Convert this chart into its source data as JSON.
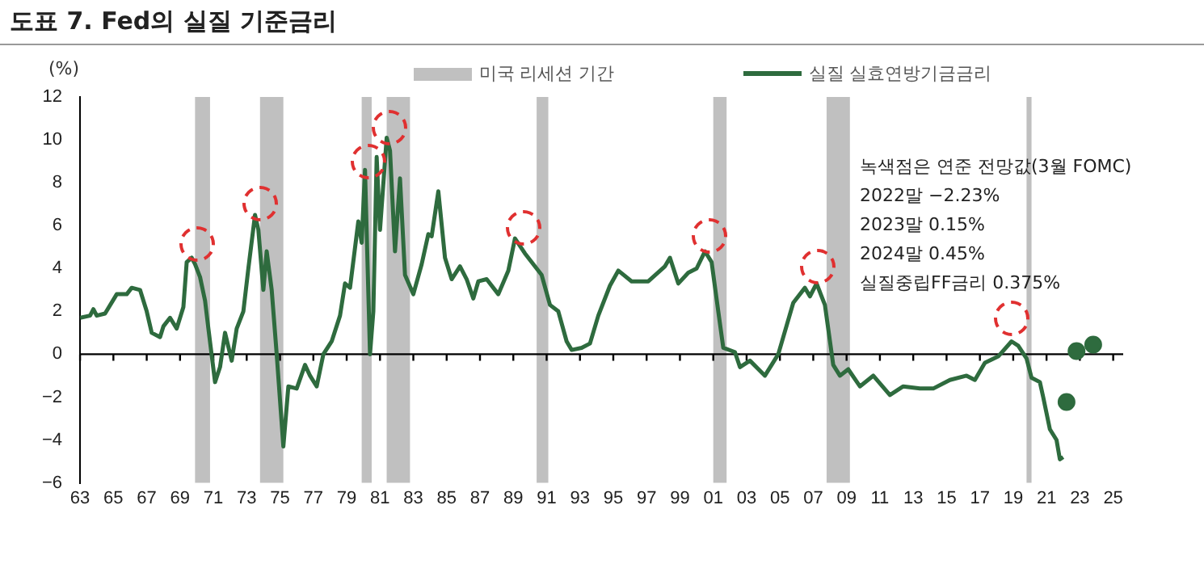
{
  "chart_data": {
    "type": "line",
    "title": "도표 7. Fed의 실질 기준금리",
    "ylabel": "(%)",
    "annotations": [
      "녹색점은 연준 전망값(3월 FOMC)",
      "2022말 −2.23%",
      "2023말 0.15%",
      "2024말 0.45%",
      "실질중립FF금리 0.375%"
    ],
    "series": [
      {
        "name": "실질 실효연방기금금리",
        "color": "#2e6b3e",
        "x": [
          1963.0,
          1963.6,
          1963.8,
          1964.0,
          1964.5,
          1965.2,
          1965.8,
          1966.1,
          1966.6,
          1967.0,
          1967.3,
          1967.8,
          1968.0,
          1968.4,
          1968.8,
          1969.2,
          1969.4,
          1969.7,
          1969.9,
          1970.2,
          1970.5,
          1970.7,
          1971.1,
          1971.4,
          1971.7,
          1972.1,
          1972.4,
          1972.8,
          1973.1,
          1973.5,
          1973.7,
          1974.0,
          1974.2,
          1974.5,
          1974.8,
          1975.2,
          1975.5,
          1976.0,
          1976.5,
          1976.8,
          1977.2,
          1977.6,
          1978.1,
          1978.6,
          1978.9,
          1979.2,
          1979.7,
          1979.9,
          1980.1,
          1980.4,
          1980.6,
          1980.8,
          1981.0,
          1981.4,
          1981.6,
          1981.9,
          1982.2,
          1982.5,
          1983.0,
          1983.5,
          1983.9,
          1984.1,
          1984.5,
          1984.9,
          1985.3,
          1985.8,
          1986.2,
          1986.6,
          1986.9,
          1987.4,
          1988.1,
          1988.7,
          1989.1,
          1989.7,
          1990.2,
          1990.7,
          1991.2,
          1991.7,
          1992.2,
          1992.5,
          1993.1,
          1993.6,
          1994.1,
          1994.8,
          1995.3,
          1996.1,
          1997.1,
          1998.1,
          1998.4,
          1998.9,
          1999.5,
          2000.0,
          2000.5,
          2000.9,
          2001.3,
          2001.6,
          2002.3,
          2002.6,
          2003.2,
          2004.1,
          2004.9,
          2005.8,
          2006.5,
          2006.8,
          2007.2,
          2007.7,
          2008.2,
          2008.6,
          2009.1,
          2009.8,
          2010.6,
          2011.6,
          2012.4,
          2013.4,
          2014.2,
          2015.2,
          2016.2,
          2016.7,
          2017.3,
          2018.1,
          2018.9,
          2019.3,
          2019.8,
          2020.1,
          2020.6,
          2020.8,
          2021.2,
          2021.6,
          2021.8,
          2022.0
        ],
        "values": [
          1.7,
          1.8,
          2.1,
          1.8,
          1.9,
          2.8,
          2.8,
          3.1,
          3.0,
          2.0,
          1.0,
          0.8,
          1.3,
          1.7,
          1.2,
          2.2,
          4.3,
          4.5,
          4.2,
          3.6,
          2.5,
          1.2,
          -1.3,
          -0.6,
          1.0,
          -0.3,
          1.2,
          2.0,
          4.0,
          6.5,
          5.8,
          3.0,
          4.8,
          3.0,
          0.0,
          -4.3,
          -1.5,
          -1.6,
          -0.5,
          -1.0,
          -1.5,
          0.0,
          0.6,
          1.8,
          3.3,
          3.1,
          6.2,
          5.2,
          8.6,
          0.0,
          2.0,
          9.2,
          5.8,
          10.1,
          9.5,
          4.8,
          8.2,
          3.7,
          2.8,
          4.2,
          5.6,
          5.5,
          7.6,
          4.5,
          3.5,
          4.1,
          3.5,
          2.6,
          3.4,
          3.5,
          2.8,
          3.9,
          5.4,
          4.7,
          4.2,
          3.7,
          2.3,
          2.0,
          0.6,
          0.2,
          0.3,
          0.5,
          1.8,
          3.2,
          3.9,
          3.4,
          3.4,
          4.1,
          4.5,
          3.3,
          3.8,
          4.0,
          4.8,
          4.3,
          2.0,
          0.3,
          0.1,
          -0.6,
          -0.3,
          -1.0,
          0.0,
          2.4,
          3.1,
          2.7,
          3.3,
          2.3,
          -0.5,
          -1.0,
          -0.7,
          -1.5,
          -1.0,
          -1.9,
          -1.5,
          -1.6,
          -1.6,
          -1.2,
          -1.0,
          -1.2,
          -0.4,
          -0.1,
          0.6,
          0.4,
          -0.2,
          -1.1,
          -1.3,
          -2.0,
          -3.5,
          -4.0,
          -4.9,
          -4.8
        ]
      },
      {
        "type": "scatter",
        "color": "#2e6b3e",
        "marker": "circle",
        "x": [
          2022.2,
          2022.8,
          2023.8
        ],
        "values": [
          -2.23,
          0.15,
          0.45
        ]
      }
    ],
    "bands": [
      {
        "axis": "x",
        "from": 1969.9,
        "to": 1970.8,
        "label": "미국 리세션 기간",
        "color": "#c0c0c0"
      },
      {
        "axis": "x",
        "from": 1973.8,
        "to": 1975.2,
        "color": "#c0c0c0"
      },
      {
        "axis": "x",
        "from": 1979.9,
        "to": 1980.5,
        "color": "#c0c0c0"
      },
      {
        "axis": "x",
        "from": 1981.4,
        "to": 1982.8,
        "color": "#c0c0c0"
      },
      {
        "axis": "x",
        "from": 1990.4,
        "to": 1991.1,
        "color": "#c0c0c0"
      },
      {
        "axis": "x",
        "from": 2001.0,
        "to": 2001.8,
        "color": "#c0c0c0"
      },
      {
        "axis": "x",
        "from": 2007.8,
        "to": 2009.2,
        "color": "#c0c0c0"
      },
      {
        "axis": "x",
        "from": 2019.8,
        "to": 2020.1,
        "color": "#c0c0c0"
      }
    ],
    "ref_lines": [
      {
        "axis": "y",
        "value": 0,
        "color": "#000000"
      }
    ],
    "xlim": [
      1963,
      2025.6
    ],
    "xticks": [
      {
        "value": 1963,
        "label": "63"
      },
      {
        "value": 1965,
        "label": "65"
      },
      {
        "value": 1967,
        "label": "67"
      },
      {
        "value": 1969,
        "label": "69"
      },
      {
        "value": 1971,
        "label": "71"
      },
      {
        "value": 1973,
        "label": "73"
      },
      {
        "value": 1975,
        "label": "75"
      },
      {
        "value": 1977,
        "label": "77"
      },
      {
        "value": 1979,
        "label": "79"
      },
      {
        "value": 1981,
        "label": "81"
      },
      {
        "value": 1983,
        "label": "83"
      },
      {
        "value": 1985,
        "label": "85"
      },
      {
        "value": 1987,
        "label": "87"
      },
      {
        "value": 1989,
        "label": "89"
      },
      {
        "value": 1991,
        "label": "91"
      },
      {
        "value": 1993,
        "label": "93"
      },
      {
        "value": 1995,
        "label": "95"
      },
      {
        "value": 1997,
        "label": "97"
      },
      {
        "value": 1999,
        "label": "99"
      },
      {
        "value": 2001,
        "label": "01"
      },
      {
        "value": 2003,
        "label": "03"
      },
      {
        "value": 2005,
        "label": "05"
      },
      {
        "value": 2007,
        "label": "07"
      },
      {
        "value": 2009,
        "label": "09"
      },
      {
        "value": 2011,
        "label": "11"
      },
      {
        "value": 2013,
        "label": "13"
      },
      {
        "value": 2015,
        "label": "15"
      },
      {
        "value": 2017,
        "label": "17"
      },
      {
        "value": 2019,
        "label": "19"
      },
      {
        "value": 2021,
        "label": "21"
      },
      {
        "value": 2023,
        "label": "23"
      },
      {
        "value": 2025,
        "label": "25"
      }
    ],
    "ylim": [
      -6,
      12
    ],
    "yticks": [
      -6,
      -4,
      -2,
      0,
      2,
      4,
      6,
      8,
      10,
      12
    ],
    "grid": false,
    "legend": "top",
    "marker": "none",
    "line_style": "solid"
  }
}
